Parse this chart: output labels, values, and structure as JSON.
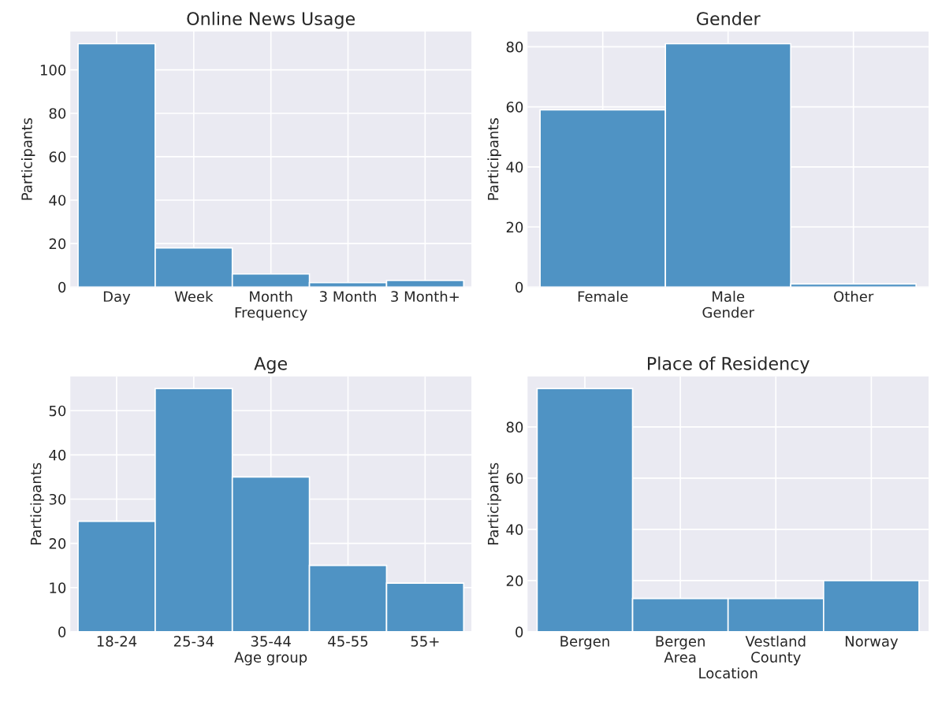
{
  "chart_data": [
    {
      "type": "bar",
      "title": "Online News Usage",
      "xlabel": "Frequency",
      "ylabel": "Participants",
      "categories": [
        "Day",
        "Week",
        "Month",
        "3 Month",
        "3 Month+"
      ],
      "values": [
        112,
        18,
        6,
        2,
        3
      ],
      "color": "#4f93c4",
      "ylim": [
        0,
        117.6
      ],
      "yticks": [
        0,
        20,
        40,
        60,
        80,
        100
      ],
      "grid": true
    },
    {
      "type": "bar",
      "title": "Gender",
      "xlabel": "Gender",
      "ylabel": "Participants",
      "categories": [
        "Female",
        "Male",
        "Other"
      ],
      "values": [
        59,
        81,
        1
      ],
      "color": "#4f93c4",
      "ylim": [
        0,
        85.05
      ],
      "yticks": [
        0,
        20,
        40,
        60,
        80
      ],
      "grid": true
    },
    {
      "type": "bar",
      "title": "Age",
      "xlabel": "Age group",
      "ylabel": "Participants",
      "categories": [
        "18-24",
        "25-34",
        "35-44",
        "45-55",
        "55+"
      ],
      "values": [
        25,
        55,
        35,
        15,
        11
      ],
      "color": "#4f93c4",
      "ylim": [
        0,
        57.75
      ],
      "yticks": [
        0,
        10,
        20,
        30,
        40,
        50
      ],
      "grid": true
    },
    {
      "type": "bar",
      "title": "Place of Residency",
      "xlabel": "Location",
      "ylabel": "Participants",
      "categories": [
        "Bergen",
        "Bergen\nArea",
        "Vestland\nCounty",
        "Norway"
      ],
      "values": [
        95,
        13,
        13,
        20
      ],
      "color": "#4f93c4",
      "ylim": [
        0,
        99.75
      ],
      "yticks": [
        0,
        20,
        40,
        60,
        80
      ],
      "grid": true
    }
  ]
}
